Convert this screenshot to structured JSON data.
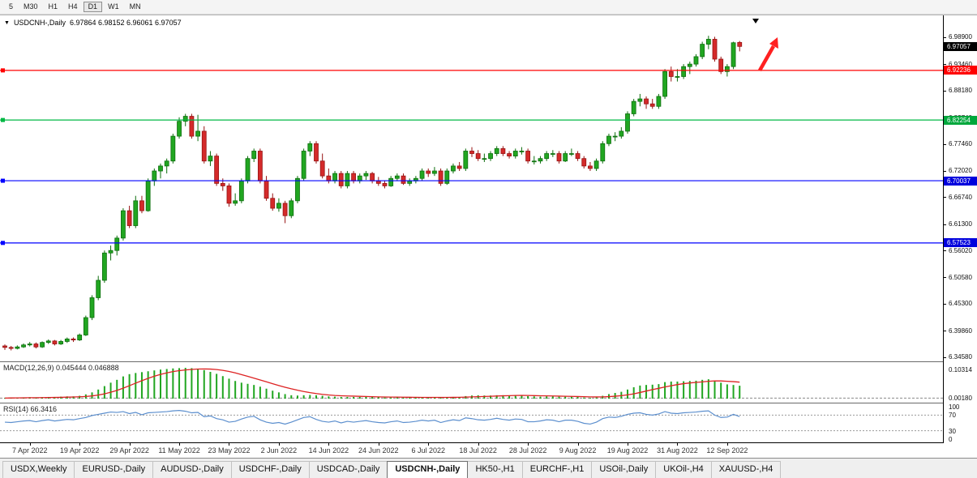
{
  "toolbar": {
    "timeframes": [
      {
        "label": "5",
        "active": false
      },
      {
        "label": "M30",
        "active": false
      },
      {
        "label": "H1",
        "active": false
      },
      {
        "label": "H4",
        "active": false
      },
      {
        "label": "D1",
        "active": true
      },
      {
        "label": "W1",
        "active": false
      },
      {
        "label": "MN",
        "active": false
      }
    ]
  },
  "chart": {
    "dropdown_icon": "▼",
    "title_symbol": "USDCNH-,Daily",
    "title_ohlc": "6.97864 6.98152 6.96061 6.97057"
  },
  "price_axis": {
    "ticks": [
      "6.98900",
      "6.93460",
      "6.88180",
      "6.82740",
      "6.77460",
      "6.72020",
      "6.66740",
      "6.61300",
      "6.56020",
      "6.50580",
      "6.45300",
      "6.39860",
      "6.34580"
    ],
    "tags": [
      {
        "label": "6.97057",
        "value": 6.97057,
        "bg": "#000000",
        "fg": "#ffffff",
        "name": "price-tag-last"
      },
      {
        "label": "6.92236",
        "value": 6.92236,
        "bg": "#ff0000",
        "fg": "#ffffff",
        "name": "price-tag-red-line"
      },
      {
        "label": "6.82254",
        "value": 6.82254,
        "bg": "#00a73c",
        "fg": "#ffffff",
        "name": "price-tag-green-line"
      },
      {
        "label": "6.70037",
        "value": 6.70037,
        "bg": "#0000dd",
        "fg": "#ffffff",
        "name": "price-tag-blue-line-1"
      },
      {
        "label": "6.57523",
        "value": 6.57523,
        "bg": "#0000dd",
        "fg": "#ffffff",
        "name": "price-tag-blue-line-2"
      }
    ]
  },
  "chart_data": {
    "type": "candlestick",
    "title": "USDCNH-,Daily",
    "last_ohlc": {
      "open": 6.97864,
      "high": 6.98152,
      "low": 6.96061,
      "close": 6.97057
    },
    "y_range": [
      6.337,
      7.033
    ],
    "hlines": [
      {
        "value": 6.92236,
        "color": "#ff0000"
      },
      {
        "value": 6.82254,
        "color": "#00b844"
      },
      {
        "value": 6.70037,
        "color": "#0000ff"
      },
      {
        "value": 6.57523,
        "color": "#0000ff"
      }
    ],
    "candles": [
      [
        6.368,
        6.371,
        6.36,
        6.365
      ],
      [
        6.365,
        6.368,
        6.359,
        6.363
      ],
      [
        6.363,
        6.369,
        6.361,
        6.366
      ],
      [
        6.366,
        6.373,
        6.364,
        6.37
      ],
      [
        6.37,
        6.376,
        6.367,
        6.372
      ],
      [
        6.372,
        6.375,
        6.363,
        6.366
      ],
      [
        6.366,
        6.377,
        6.364,
        6.375
      ],
      [
        6.375,
        6.381,
        6.372,
        6.378
      ],
      [
        6.378,
        6.38,
        6.369,
        6.372
      ],
      [
        6.372,
        6.38,
        6.37,
        6.377
      ],
      [
        6.377,
        6.385,
        6.374,
        6.382
      ],
      [
        6.382,
        6.385,
        6.376,
        6.38
      ],
      [
        6.38,
        6.393,
        6.378,
        6.39
      ],
      [
        6.39,
        6.429,
        6.388,
        6.425
      ],
      [
        6.425,
        6.47,
        6.42,
        6.465
      ],
      [
        6.465,
        6.509,
        6.46,
        6.5
      ],
      [
        6.5,
        6.56,
        6.495,
        6.555
      ],
      [
        6.555,
        6.57,
        6.54,
        6.56
      ],
      [
        6.56,
        6.59,
        6.55,
        6.585
      ],
      [
        6.585,
        6.645,
        6.58,
        6.64
      ],
      [
        6.64,
        6.65,
        6.605,
        6.61
      ],
      [
        6.61,
        6.67,
        6.605,
        6.66
      ],
      [
        6.66,
        6.67,
        6.635,
        6.64
      ],
      [
        6.64,
        6.705,
        6.638,
        6.7
      ],
      [
        6.7,
        6.725,
        6.69,
        6.72
      ],
      [
        6.72,
        6.735,
        6.705,
        6.73
      ],
      [
        6.73,
        6.745,
        6.715,
        6.74
      ],
      [
        6.74,
        6.795,
        6.735,
        6.79
      ],
      [
        6.79,
        6.828,
        6.785,
        6.82
      ],
      [
        6.82,
        6.835,
        6.81,
        6.83
      ],
      [
        6.83,
        6.835,
        6.785,
        6.79
      ],
      [
        6.79,
        6.833,
        6.78,
        6.8
      ],
      [
        6.8,
        6.81,
        6.735,
        6.74
      ],
      [
        6.74,
        6.76,
        6.73,
        6.75
      ],
      [
        6.75,
        6.755,
        6.69,
        6.695
      ],
      [
        6.695,
        6.705,
        6.68,
        6.69
      ],
      [
        6.69,
        6.695,
        6.648,
        6.655
      ],
      [
        6.655,
        6.675,
        6.65,
        6.66
      ],
      [
        6.66,
        6.705,
        6.655,
        6.7
      ],
      [
        6.7,
        6.75,
        6.695,
        6.745
      ],
      [
        6.745,
        6.765,
        6.738,
        6.76
      ],
      [
        6.76,
        6.765,
        6.695,
        6.7
      ],
      [
        6.7,
        6.71,
        6.66,
        6.665
      ],
      [
        6.665,
        6.675,
        6.64,
        6.645
      ],
      [
        6.645,
        6.665,
        6.638,
        6.655
      ],
      [
        6.655,
        6.66,
        6.615,
        6.63
      ],
      [
        6.63,
        6.665,
        6.625,
        6.66
      ],
      [
        6.66,
        6.71,
        6.655,
        6.705
      ],
      [
        6.705,
        6.765,
        6.7,
        6.76
      ],
      [
        6.76,
        6.78,
        6.75,
        6.775
      ],
      [
        6.775,
        6.78,
        6.735,
        6.74
      ],
      [
        6.74,
        6.755,
        6.705,
        6.71
      ],
      [
        6.71,
        6.725,
        6.695,
        6.7
      ],
      [
        6.7,
        6.72,
        6.695,
        6.715
      ],
      [
        6.715,
        6.72,
        6.685,
        6.69
      ],
      [
        6.69,
        6.72,
        6.685,
        6.715
      ],
      [
        6.715,
        6.72,
        6.695,
        6.7
      ],
      [
        6.7,
        6.715,
        6.695,
        6.71
      ],
      [
        6.71,
        6.72,
        6.702,
        6.715
      ],
      [
        6.715,
        6.718,
        6.695,
        6.7
      ],
      [
        6.7,
        6.708,
        6.69,
        6.695
      ],
      [
        6.695,
        6.7,
        6.685,
        6.69
      ],
      [
        6.69,
        6.71,
        6.688,
        6.705
      ],
      [
        6.705,
        6.715,
        6.7,
        6.71
      ],
      [
        6.71,
        6.715,
        6.692,
        6.695
      ],
      [
        6.695,
        6.705,
        6.69,
        6.7
      ],
      [
        6.7,
        6.71,
        6.695,
        6.705
      ],
      [
        6.705,
        6.725,
        6.7,
        6.72
      ],
      [
        6.72,
        6.725,
        6.708,
        6.715
      ],
      [
        6.715,
        6.728,
        6.71,
        6.72
      ],
      [
        6.72,
        6.725,
        6.69,
        6.695
      ],
      [
        6.695,
        6.725,
        6.692,
        6.72
      ],
      [
        6.72,
        6.735,
        6.715,
        6.73
      ],
      [
        6.73,
        6.738,
        6.72,
        6.725
      ],
      [
        6.725,
        6.765,
        6.72,
        6.76
      ],
      [
        6.76,
        6.768,
        6.748,
        6.755
      ],
      [
        6.755,
        6.762,
        6.74,
        6.745
      ],
      [
        6.745,
        6.755,
        6.738,
        6.745
      ],
      [
        6.745,
        6.76,
        6.74,
        6.755
      ],
      [
        6.755,
        6.77,
        6.75,
        6.765
      ],
      [
        6.765,
        6.77,
        6.75,
        6.755
      ],
      [
        6.755,
        6.76,
        6.745,
        6.75
      ],
      [
        6.75,
        6.765,
        6.745,
        6.76
      ],
      [
        6.76,
        6.768,
        6.753,
        6.76
      ],
      [
        6.76,
        6.765,
        6.735,
        6.74
      ],
      [
        6.74,
        6.75,
        6.733,
        6.74
      ],
      [
        6.74,
        6.75,
        6.735,
        6.745
      ],
      [
        6.745,
        6.76,
        6.74,
        6.755
      ],
      [
        6.755,
        6.762,
        6.748,
        6.755
      ],
      [
        6.755,
        6.76,
        6.735,
        6.74
      ],
      [
        6.74,
        6.76,
        6.738,
        6.755
      ],
      [
        6.755,
        6.765,
        6.75,
        6.755
      ],
      [
        6.755,
        6.76,
        6.74,
        6.745
      ],
      [
        6.745,
        6.75,
        6.725,
        6.73
      ],
      [
        6.73,
        6.738,
        6.72,
        6.725
      ],
      [
        6.725,
        6.745,
        6.72,
        6.74
      ],
      [
        6.74,
        6.78,
        6.735,
        6.775
      ],
      [
        6.775,
        6.795,
        6.77,
        6.79
      ],
      [
        6.79,
        6.798,
        6.78,
        6.79
      ],
      [
        6.79,
        6.808,
        6.785,
        6.8
      ],
      [
        6.8,
        6.84,
        6.795,
        6.835
      ],
      [
        6.835,
        6.865,
        6.83,
        6.86
      ],
      [
        6.86,
        6.875,
        6.85,
        6.865
      ],
      [
        6.865,
        6.87,
        6.845,
        6.855
      ],
      [
        6.855,
        6.865,
        6.845,
        6.85
      ],
      [
        6.85,
        6.875,
        6.845,
        6.87
      ],
      [
        6.87,
        6.925,
        6.865,
        6.92
      ],
      [
        6.92,
        6.93,
        6.9,
        6.91
      ],
      [
        6.91,
        6.925,
        6.9,
        6.91
      ],
      [
        6.91,
        6.935,
        6.905,
        6.93
      ],
      [
        6.93,
        6.94,
        6.915,
        6.935
      ],
      [
        6.935,
        6.955,
        6.93,
        6.95
      ],
      [
        6.95,
        6.98,
        6.945,
        6.975
      ],
      [
        6.975,
        6.992,
        6.965,
        6.985
      ],
      [
        6.985,
        6.99,
        6.94,
        6.945
      ],
      [
        6.945,
        6.95,
        6.915,
        6.92
      ],
      [
        6.92,
        6.935,
        6.91,
        6.93
      ],
      [
        6.93,
        6.98,
        6.925,
        6.978
      ],
      [
        6.97864,
        6.98152,
        6.96061,
        6.97057
      ]
    ]
  },
  "macd_panel": {
    "label": "MACD(12,26,9) 0.045444 0.046888",
    "axis_labels": [
      {
        "text": "0.10314",
        "value": 0.10314
      },
      {
        "text": "0.00180",
        "value": 0.0018
      }
    ],
    "zero_level": 0.0018,
    "chart_data": {
      "type": "bar",
      "range": [
        -0.014,
        0.128
      ],
      "signal_period": 9,
      "histogram": [
        0.002,
        0.003,
        0.003,
        0.004,
        0.005,
        0.004,
        0.005,
        0.006,
        0.006,
        0.007,
        0.008,
        0.008,
        0.01,
        0.015,
        0.022,
        0.032,
        0.044,
        0.056,
        0.066,
        0.078,
        0.086,
        0.09,
        0.093,
        0.096,
        0.099,
        0.102,
        0.104,
        0.106,
        0.107,
        0.108,
        0.107,
        0.105,
        0.1,
        0.094,
        0.087,
        0.079,
        0.07,
        0.062,
        0.056,
        0.052,
        0.048,
        0.042,
        0.035,
        0.028,
        0.022,
        0.016,
        0.012,
        0.011,
        0.012,
        0.013,
        0.012,
        0.01,
        0.008,
        0.007,
        0.006,
        0.006,
        0.006,
        0.006,
        0.007,
        0.006,
        0.005,
        0.004,
        0.004,
        0.005,
        0.004,
        0.004,
        0.004,
        0.005,
        0.005,
        0.005,
        0.004,
        0.005,
        0.006,
        0.006,
        0.009,
        0.011,
        0.012,
        0.011,
        0.011,
        0.012,
        0.012,
        0.011,
        0.011,
        0.011,
        0.009,
        0.008,
        0.007,
        0.008,
        0.008,
        0.007,
        0.007,
        0.007,
        0.006,
        0.004,
        0.003,
        0.004,
        0.01,
        0.016,
        0.02,
        0.024,
        0.032,
        0.04,
        0.046,
        0.048,
        0.049,
        0.051,
        0.058,
        0.06,
        0.06,
        0.061,
        0.062,
        0.063,
        0.066,
        0.068,
        0.063,
        0.056,
        0.05,
        0.048,
        0.045444
      ]
    }
  },
  "rsi_panel": {
    "label": "RSI(14) 66.3416",
    "axis_labels": [
      {
        "text": "100",
        "value": 100
      },
      {
        "text": "70",
        "value": 70
      },
      {
        "text": "30",
        "value": 30
      },
      {
        "text": "0",
        "value": 0
      }
    ],
    "levels": [
      70,
      30
    ],
    "chart_data": {
      "type": "line",
      "range": [
        0,
        100
      ],
      "values": [
        52,
        51,
        53,
        55,
        56,
        53,
        56,
        58,
        55,
        57,
        59,
        58,
        61,
        64,
        69,
        72,
        75,
        78,
        77,
        79,
        74,
        77,
        71,
        76,
        77,
        78,
        79,
        81,
        82,
        80,
        76,
        77,
        66,
        68,
        61,
        58,
        52,
        54,
        60,
        65,
        67,
        58,
        52,
        49,
        51,
        47,
        52,
        58,
        64,
        66,
        59,
        54,
        52,
        55,
        50,
        54,
        52,
        54,
        56,
        53,
        51,
        50,
        53,
        55,
        51,
        52,
        54,
        57,
        55,
        57,
        51,
        55,
        58,
        56,
        63,
        61,
        58,
        57,
        59,
        62,
        59,
        57,
        60,
        59,
        53,
        53,
        55,
        58,
        57,
        53,
        57,
        57,
        54,
        49,
        47,
        52,
        61,
        65,
        64,
        67,
        72,
        75,
        76,
        72,
        70,
        73,
        79,
        75,
        74,
        76,
        77,
        78,
        80,
        81,
        70,
        64,
        65,
        72,
        66.34
      ]
    }
  },
  "time_axis": {
    "labels": [
      {
        "text": "7 Apr 2022",
        "index": 4
      },
      {
        "text": "19 Apr 2022",
        "index": 12
      },
      {
        "text": "29 Apr 2022",
        "index": 20
      },
      {
        "text": "11 May 2022",
        "index": 28
      },
      {
        "text": "23 May 2022",
        "index": 36
      },
      {
        "text": "2 Jun 2022",
        "index": 44
      },
      {
        "text": "14 Jun 2022",
        "index": 52
      },
      {
        "text": "24 Jun 2022",
        "index": 60
      },
      {
        "text": "6 Jul 2022",
        "index": 68
      },
      {
        "text": "18 Jul 2022",
        "index": 76
      },
      {
        "text": "28 Jul 2022",
        "index": 84
      },
      {
        "text": "9 Aug 2022",
        "index": 92
      },
      {
        "text": "19 Aug 2022",
        "index": 100
      },
      {
        "text": "31 Aug 2022",
        "index": 108
      },
      {
        "text": "12 Sep 2022",
        "index": 116
      }
    ]
  },
  "tabs": [
    {
      "label": "USDX,Weekly",
      "active": false
    },
    {
      "label": "EURUSD-,Daily",
      "active": false
    },
    {
      "label": "AUDUSD-,Daily",
      "active": false
    },
    {
      "label": "USDCHF-,Daily",
      "active": false
    },
    {
      "label": "USDCAD-,Daily",
      "active": false
    },
    {
      "label": "USDCNH-,Daily",
      "active": true
    },
    {
      "label": "HK50-,H1",
      "active": false
    },
    {
      "label": "EURCHF-,H1",
      "active": false
    },
    {
      "label": "USOil-,Daily",
      "active": false
    },
    {
      "label": "UKOil-,H4",
      "active": false
    },
    {
      "label": "XAUUSD-,H4",
      "active": false
    }
  ],
  "colors": {
    "bull_fill": "#21a621",
    "bull_border": "#0d6e0d",
    "bear_fill": "#d42a2a",
    "bear_border": "#971313",
    "macd_hist": "#21a621",
    "macd_signal": "#dd2222",
    "rsi_line": "#5c8fce",
    "annotation_arrow": "#ff2020",
    "end_marker": "#000000"
  }
}
